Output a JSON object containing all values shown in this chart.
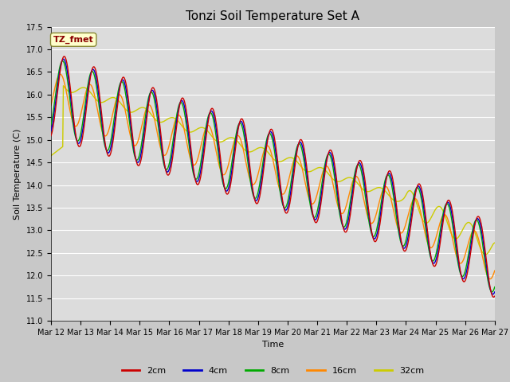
{
  "title": "Tonzi Soil Temperature Set A",
  "xlabel": "Time",
  "ylabel": "Soil Temperature (C)",
  "ylim": [
    11.0,
    17.5
  ],
  "annotation_text": "TZ_fmet",
  "annotation_color": "#8B0000",
  "annotation_bg": "#FFFFCC",
  "plot_bg": "#DCDCDC",
  "grid_color": "white",
  "series": {
    "2cm": {
      "color": "#CC0000",
      "linewidth": 1.0
    },
    "4cm": {
      "color": "#0000CC",
      "linewidth": 1.0
    },
    "8cm": {
      "color": "#00AA00",
      "linewidth": 1.0
    },
    "16cm": {
      "color": "#FF8800",
      "linewidth": 1.0
    },
    "32cm": {
      "color": "#CCCC00",
      "linewidth": 1.0
    }
  },
  "xtick_labels": [
    "Mar 12",
    "Mar 13",
    "Mar 14",
    "Mar 15",
    "Mar 16",
    "Mar 17",
    "Mar 18",
    "Mar 19",
    "Mar 20",
    "Mar 21",
    "Mar 22",
    "Mar 23",
    "Mar 24",
    "Mar 25",
    "Mar 26",
    "Mar 27"
  ],
  "title_fontsize": 11,
  "label_fontsize": 8,
  "tick_fontsize": 7,
  "legend_fontsize": 8
}
